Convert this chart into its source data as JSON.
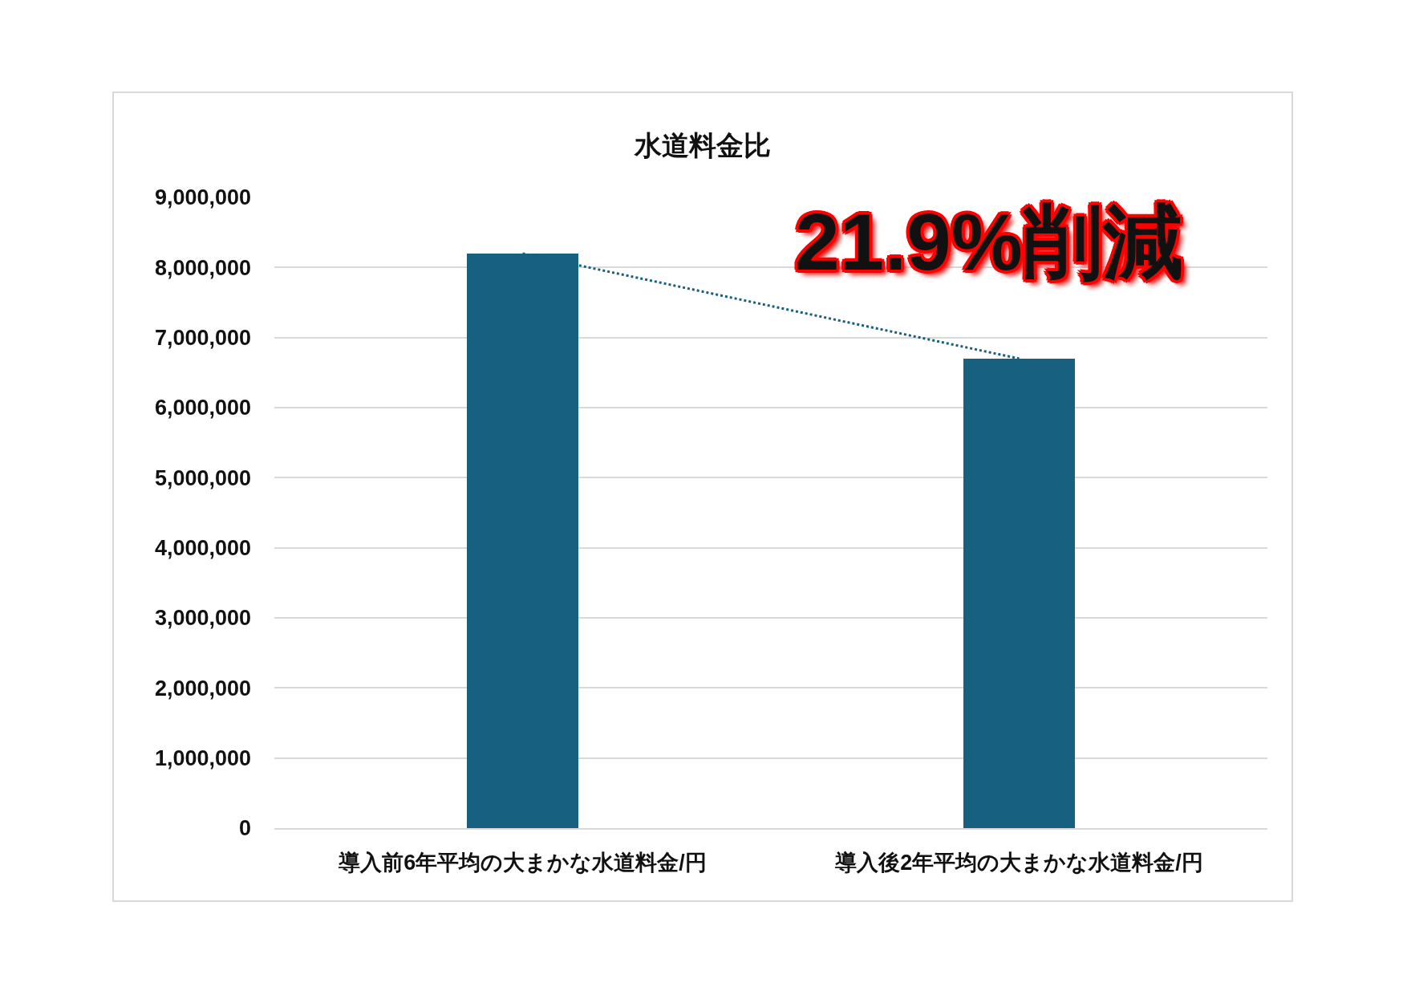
{
  "chart_data": {
    "type": "bar",
    "title": "水道料金比",
    "categories": [
      "導入前6年平均の大まかな水道料金/円",
      "導入後2年平均の大まかな水道料金/円"
    ],
    "series": [
      {
        "color": "#17607f",
        "values": [
          8200000,
          6700000
        ]
      },
      {
        "type": "line",
        "color": "#17607f",
        "values": [
          8200000,
          6700000
        ],
        "line_style": "dotted",
        "marker": "none"
      }
    ],
    "ylim": [
      0,
      9000000
    ],
    "yticks": [
      {
        "value": 0,
        "label": "0"
      },
      {
        "value": 1000000,
        "label": "1,000,000"
      },
      {
        "value": 2000000,
        "label": "2,000,000"
      },
      {
        "value": 3000000,
        "label": "3,000,000"
      },
      {
        "value": 4000000,
        "label": "4,000,000"
      },
      {
        "value": 5000000,
        "label": "5,000,000"
      },
      {
        "value": 6000000,
        "label": "6,000,000"
      },
      {
        "value": 7000000,
        "label": "7,000,000"
      },
      {
        "value": 8000000,
        "label": "8,000,000"
      },
      {
        "value": 9000000,
        "label": "9,000,000"
      }
    ],
    "grid": "y",
    "annotations": [
      "21.9%削減"
    ]
  }
}
